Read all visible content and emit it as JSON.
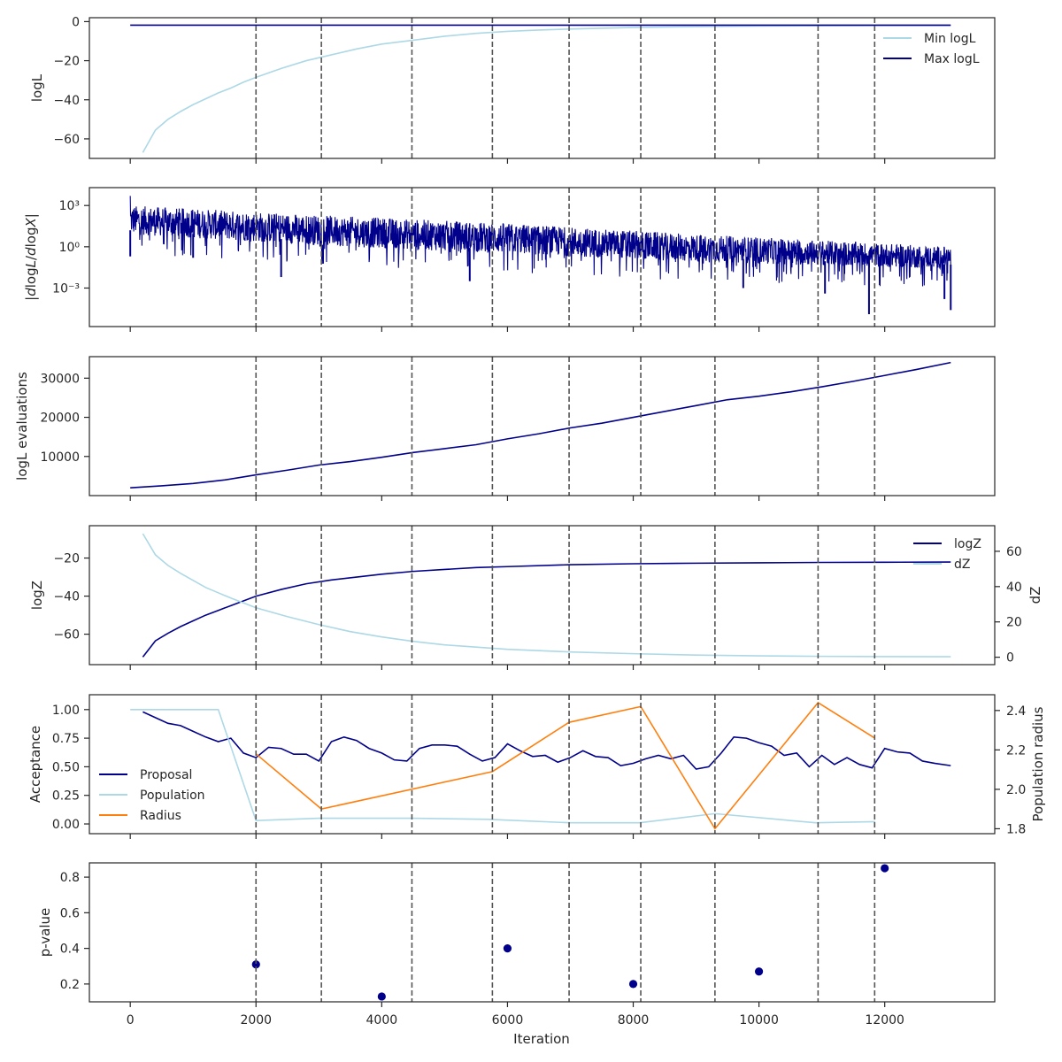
{
  "figure": {
    "xlabel": "Iteration",
    "x_tick_labels": [
      "0",
      "2000",
      "4000",
      "6000",
      "8000",
      "10000",
      "12000"
    ]
  },
  "colors": {
    "navy": "#00008b",
    "lightblue": "#add8e6",
    "orange": "#ff7f0e",
    "vline": "#555555"
  },
  "chart_data": [
    {
      "type": "line",
      "ylabel": "logL",
      "xlim": [
        -650,
        13750
      ],
      "ylim": [
        -70,
        2
      ],
      "y_ticks": [
        0,
        -20,
        -40,
        -60
      ],
      "y_tick_labels": [
        "0",
        "−20",
        "−40",
        "−60"
      ],
      "grid": false,
      "legend_position": "top-right",
      "vlines": [
        2000,
        3040,
        4480,
        5760,
        6980,
        8120,
        9300,
        10940,
        11840
      ],
      "series": [
        {
          "name": "Min logL",
          "color": "lightblue",
          "x": [
            200,
            400,
            600,
            800,
            1000,
            1200,
            1400,
            1600,
            1800,
            2000,
            2400,
            2800,
            3200,
            3600,
            4000,
            4500,
            5000,
            5500,
            6000,
            6500,
            7000,
            8000,
            9000,
            10000,
            11000,
            12000,
            13050
          ],
          "y": [
            -67,
            -55.5,
            -50,
            -46,
            -42.5,
            -39.5,
            -36.5,
            -34,
            -31,
            -28.5,
            -24,
            -20,
            -17,
            -14,
            -11.5,
            -9.5,
            -7.5,
            -6,
            -5,
            -4.3,
            -3.8,
            -3,
            -2.6,
            -2.3,
            -2.1,
            -2,
            -2
          ]
        },
        {
          "name": "Max logL",
          "color": "navy",
          "x": [
            0,
            13050
          ],
          "y": [
            -1.8,
            -1.8
          ]
        }
      ]
    },
    {
      "type": "line",
      "ylabel": "|d log L / d log X|",
      "scale": "log",
      "xlim": [
        -650,
        13750
      ],
      "ylim": [
        -5.8,
        4.3
      ],
      "y_ticks": [
        3,
        0,
        -3
      ],
      "y_tick_labels": [
        "10³",
        "10⁰",
        "10⁻³"
      ],
      "grid": false,
      "vlines": [
        2000,
        3040,
        4480,
        5760,
        6980,
        8120,
        9300,
        10940,
        11840
      ],
      "series": [
        {
          "color": "navy",
          "band_x": [
            0,
            3000,
            6000,
            9000,
            13050
          ],
          "band_high_log10": [
            3.0,
            2.3,
            1.7,
            0.9,
            0.0
          ],
          "band_low_log10": [
            0.9,
            0.1,
            -0.5,
            -1.1,
            -1.6
          ],
          "dips_x": [
            0,
            1000,
            2400,
            5400,
            9750,
            11050,
            11750,
            12950,
            13050
          ],
          "dips_log10": [
            -0.7,
            -0.8,
            -2.2,
            -2.5,
            -3.0,
            -3.4,
            -4.9,
            -3.8,
            -4.6
          ],
          "peak_x": 0,
          "peak_log10": 3.7
        }
      ]
    },
    {
      "type": "line",
      "ylabel": "logL evaluations",
      "xlim": [
        -650,
        13750
      ],
      "ylim": [
        0,
        35500
      ],
      "y_ticks": [
        10000,
        20000,
        30000
      ],
      "y_tick_labels": [
        "10000",
        "20000",
        "30000"
      ],
      "grid": false,
      "vlines": [
        2000,
        3040,
        4480,
        5760,
        6980,
        8120,
        9300,
        10940,
        11840
      ],
      "series": [
        {
          "color": "navy",
          "x": [
            0,
            500,
            1000,
            1500,
            2000,
            2500,
            3000,
            3500,
            4000,
            4500,
            5000,
            5500,
            6000,
            6500,
            7000,
            7500,
            8000,
            8500,
            9000,
            9500,
            10000,
            10500,
            11000,
            11500,
            12000,
            12500,
            13050
          ],
          "y": [
            2000,
            2500,
            3100,
            4000,
            5300,
            6500,
            7800,
            8700,
            9800,
            11000,
            12000,
            13000,
            14500,
            15800,
            17300,
            18500,
            20000,
            21500,
            23000,
            24500,
            25400,
            26500,
            27800,
            29200,
            30700,
            32200,
            34000
          ]
        }
      ]
    },
    {
      "type": "line",
      "ylabel": "logZ",
      "y2label": "dZ",
      "xlim": [
        -650,
        13750
      ],
      "ylim": [
        -76,
        -3
      ],
      "y_ticks": [
        -20,
        -40,
        -60
      ],
      "y_tick_labels": [
        "−20",
        "−40",
        "−60"
      ],
      "y2lim": [
        -4.2,
        74.5
      ],
      "y2_ticks": [
        0,
        20,
        40,
        60
      ],
      "y2_tick_labels": [
        "0",
        "20",
        "40",
        "60"
      ],
      "grid": false,
      "legend_position": "top-right",
      "vlines": [
        2000,
        3040,
        4480,
        5760,
        6980,
        8120,
        9300,
        10940,
        11840
      ],
      "series": [
        {
          "name": "logZ",
          "color": "navy",
          "axis": "left",
          "x": [
            200,
            400,
            600,
            800,
            1000,
            1200,
            1400,
            1600,
            2000,
            2400,
            2800,
            3200,
            3600,
            4000,
            4500,
            5000,
            5500,
            6000,
            7000,
            8000,
            9000,
            10000,
            11000,
            12000,
            13050
          ],
          "y": [
            -72,
            -63.5,
            -59.5,
            -56,
            -53,
            -50,
            -47.5,
            -45,
            -40,
            -36.5,
            -33.5,
            -31.5,
            -30,
            -28.5,
            -27,
            -26,
            -25,
            -24.5,
            -23.5,
            -23,
            -22.7,
            -22.5,
            -22.3,
            -22.2,
            -22.1
          ]
        },
        {
          "name": "dZ",
          "color": "lightblue",
          "axis": "right",
          "x": [
            200,
            400,
            600,
            800,
            1000,
            1200,
            1400,
            1600,
            2000,
            2500,
            3000,
            3500,
            4000,
            4500,
            5000,
            6000,
            7000,
            8000,
            9000,
            10000,
            11000,
            12000,
            13050
          ],
          "y": [
            70,
            58,
            52,
            47.5,
            43.5,
            39.5,
            36.5,
            33.5,
            28,
            23,
            18.5,
            14.5,
            11.5,
            9,
            7,
            4.5,
            3,
            2,
            1.2,
            0.8,
            0.5,
            0.35,
            0.3
          ]
        }
      ]
    },
    {
      "type": "line",
      "ylabel": "Acceptance",
      "y2label": "Population radius",
      "xlim": [
        -650,
        13750
      ],
      "ylim": [
        -0.085,
        1.13
      ],
      "y_ticks": [
        0,
        0.25,
        0.5,
        0.75,
        1.0
      ],
      "y_tick_labels": [
        "0.00",
        "0.25",
        "0.50",
        "0.75",
        "1.00"
      ],
      "y2lim": [
        1.775,
        2.48
      ],
      "y2_ticks": [
        1.8,
        2.0,
        2.2,
        2.4
      ],
      "y2_tick_labels": [
        "1.8",
        "2.0",
        "2.2",
        "2.4"
      ],
      "grid": false,
      "legend_position": "lower-left",
      "vlines": [
        2000,
        3040,
        4480,
        5760,
        6980,
        8120,
        9300,
        10940,
        11840
      ],
      "series": [
        {
          "name": "Proposal",
          "color": "navy",
          "axis": "left",
          "x": [
            200,
            400,
            600,
            800,
            1000,
            1200,
            1400,
            1600,
            1800,
            2000,
            2200,
            2400,
            2600,
            2800,
            3000,
            3200,
            3400,
            3600,
            3800,
            4000,
            4200,
            4400,
            4600,
            4800,
            5000,
            5200,
            5400,
            5600,
            5800,
            6000,
            6200,
            6400,
            6600,
            6800,
            7000,
            7200,
            7400,
            7600,
            7800,
            8000,
            8200,
            8400,
            8600,
            8800,
            9000,
            9200,
            9400,
            9600,
            9800,
            10000,
            10200,
            10400,
            10600,
            10800,
            11000,
            11200,
            11400,
            11600,
            11800,
            12000,
            12200,
            12400,
            12600,
            12800,
            13050
          ],
          "y": [
            0.98,
            0.93,
            0.88,
            0.86,
            0.81,
            0.76,
            0.72,
            0.75,
            0.62,
            0.58,
            0.67,
            0.66,
            0.61,
            0.61,
            0.55,
            0.72,
            0.76,
            0.73,
            0.66,
            0.62,
            0.56,
            0.55,
            0.66,
            0.69,
            0.69,
            0.68,
            0.61,
            0.55,
            0.58,
            0.7,
            0.64,
            0.59,
            0.6,
            0.54,
            0.58,
            0.64,
            0.59,
            0.58,
            0.51,
            0.53,
            0.57,
            0.6,
            0.57,
            0.6,
            0.48,
            0.5,
            0.62,
            0.76,
            0.75,
            0.71,
            0.68,
            0.6,
            0.62,
            0.5,
            0.6,
            0.52,
            0.58,
            0.52,
            0.49,
            0.66,
            0.63,
            0.62,
            0.55,
            0.53,
            0.51
          ]
        },
        {
          "name": "Population",
          "color": "lightblue",
          "axis": "left",
          "x": [
            0,
            1400,
            2000,
            3000,
            4500,
            5700,
            7000,
            8100,
            9300,
            10900,
            11850
          ],
          "y": [
            1.0,
            1.0,
            0.03,
            0.05,
            0.05,
            0.04,
            0.01,
            0.01,
            0.09,
            0.01,
            0.02
          ]
        },
        {
          "name": "Radius",
          "color": "orange",
          "axis": "right",
          "x": [
            2000,
            3040,
            5760,
            6980,
            8120,
            9300,
            10940,
            11840
          ],
          "y": [
            2.18,
            1.9,
            2.09,
            2.34,
            2.42,
            1.8,
            2.44,
            2.26
          ]
        }
      ]
    },
    {
      "type": "scatter",
      "ylabel": "p-value",
      "xlim": [
        -650,
        13750
      ],
      "ylim": [
        0.1,
        0.88
      ],
      "y_ticks": [
        0.2,
        0.4,
        0.6,
        0.8
      ],
      "y_tick_labels": [
        "0.2",
        "0.4",
        "0.6",
        "0.8"
      ],
      "grid": false,
      "vlines": [
        2000,
        3040,
        4480,
        5760,
        6980,
        8120,
        9300,
        10940,
        11840
      ],
      "series": [
        {
          "color": "navy",
          "x": [
            2000,
            4000,
            6000,
            8000,
            10000,
            12000
          ],
          "y": [
            0.31,
            0.13,
            0.4,
            0.2,
            0.27,
            0.85
          ]
        }
      ]
    }
  ]
}
